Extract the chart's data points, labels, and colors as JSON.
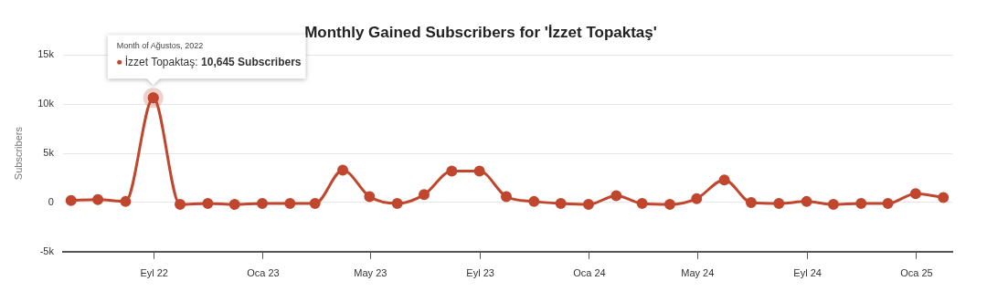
{
  "chart_data": {
    "type": "line",
    "title": "Monthly Gained Subscribers for 'İzzet Topaktaş'",
    "ylabel": "Subscribers",
    "x": [
      "2022-05-31",
      "2022-06-30",
      "2022-07-31",
      "2022-08-31",
      "2022-09-30",
      "2022-10-31",
      "2022-11-30",
      "2022-12-31",
      "2023-01-31",
      "2023-02-28",
      "2023-03-31",
      "2023-04-30",
      "2023-05-31",
      "2023-06-30",
      "2023-07-31",
      "2023-08-31",
      "2023-09-30",
      "2023-10-31",
      "2023-11-30",
      "2023-12-31",
      "2024-01-31",
      "2024-02-29",
      "2024-03-31",
      "2024-04-30",
      "2024-05-31",
      "2024-06-30",
      "2024-07-31",
      "2024-08-31",
      "2024-09-30",
      "2024-10-31",
      "2024-11-30",
      "2024-12-31",
      "2025-01-31"
    ],
    "series": [
      {
        "color": "#c0462e",
        "values": [
          200,
          300,
          100,
          10645,
          -200,
          -100,
          -200,
          -100,
          -100,
          -100,
          3300,
          600,
          -100,
          800,
          3200,
          3200,
          600,
          100,
          -100,
          -200,
          700,
          -100,
          -200,
          400,
          2300,
          0,
          -100,
          100,
          -200,
          -100,
          -100,
          900,
          500
        ]
      }
    ],
    "xlim": [
      "2022-05-22",
      "2025-02-10"
    ],
    "xticks": [
      {
        "value": "2022-09-01",
        "label": "Eyl 22"
      },
      {
        "value": "2023-01-01",
        "label": "Oca 23"
      },
      {
        "value": "2023-05-01",
        "label": "May 23"
      },
      {
        "value": "2023-09-01",
        "label": "Eyl 23"
      },
      {
        "value": "2024-01-01",
        "label": "Oca 24"
      },
      {
        "value": "2024-05-01",
        "label": "May 24"
      },
      {
        "value": "2024-09-01",
        "label": "Eyl 24"
      },
      {
        "value": "2025-01-01",
        "label": "Oca 25"
      }
    ],
    "ylim": [
      -5000,
      15000
    ],
    "yticks": [
      {
        "value": -5000,
        "label": "-5k"
      },
      {
        "value": 0,
        "label": "0"
      },
      {
        "value": 5000,
        "label": "5k"
      },
      {
        "value": 10000,
        "label": "10k"
      },
      {
        "value": 15000,
        "label": "15k"
      }
    ],
    "annotations": [
      "Month of Ağustos, 2022",
      "İzzet Topaktaş: 10,645 Subscribers"
    ],
    "grid": "y",
    "legend": false,
    "marker": "circle",
    "line_style": "solid"
  }
}
